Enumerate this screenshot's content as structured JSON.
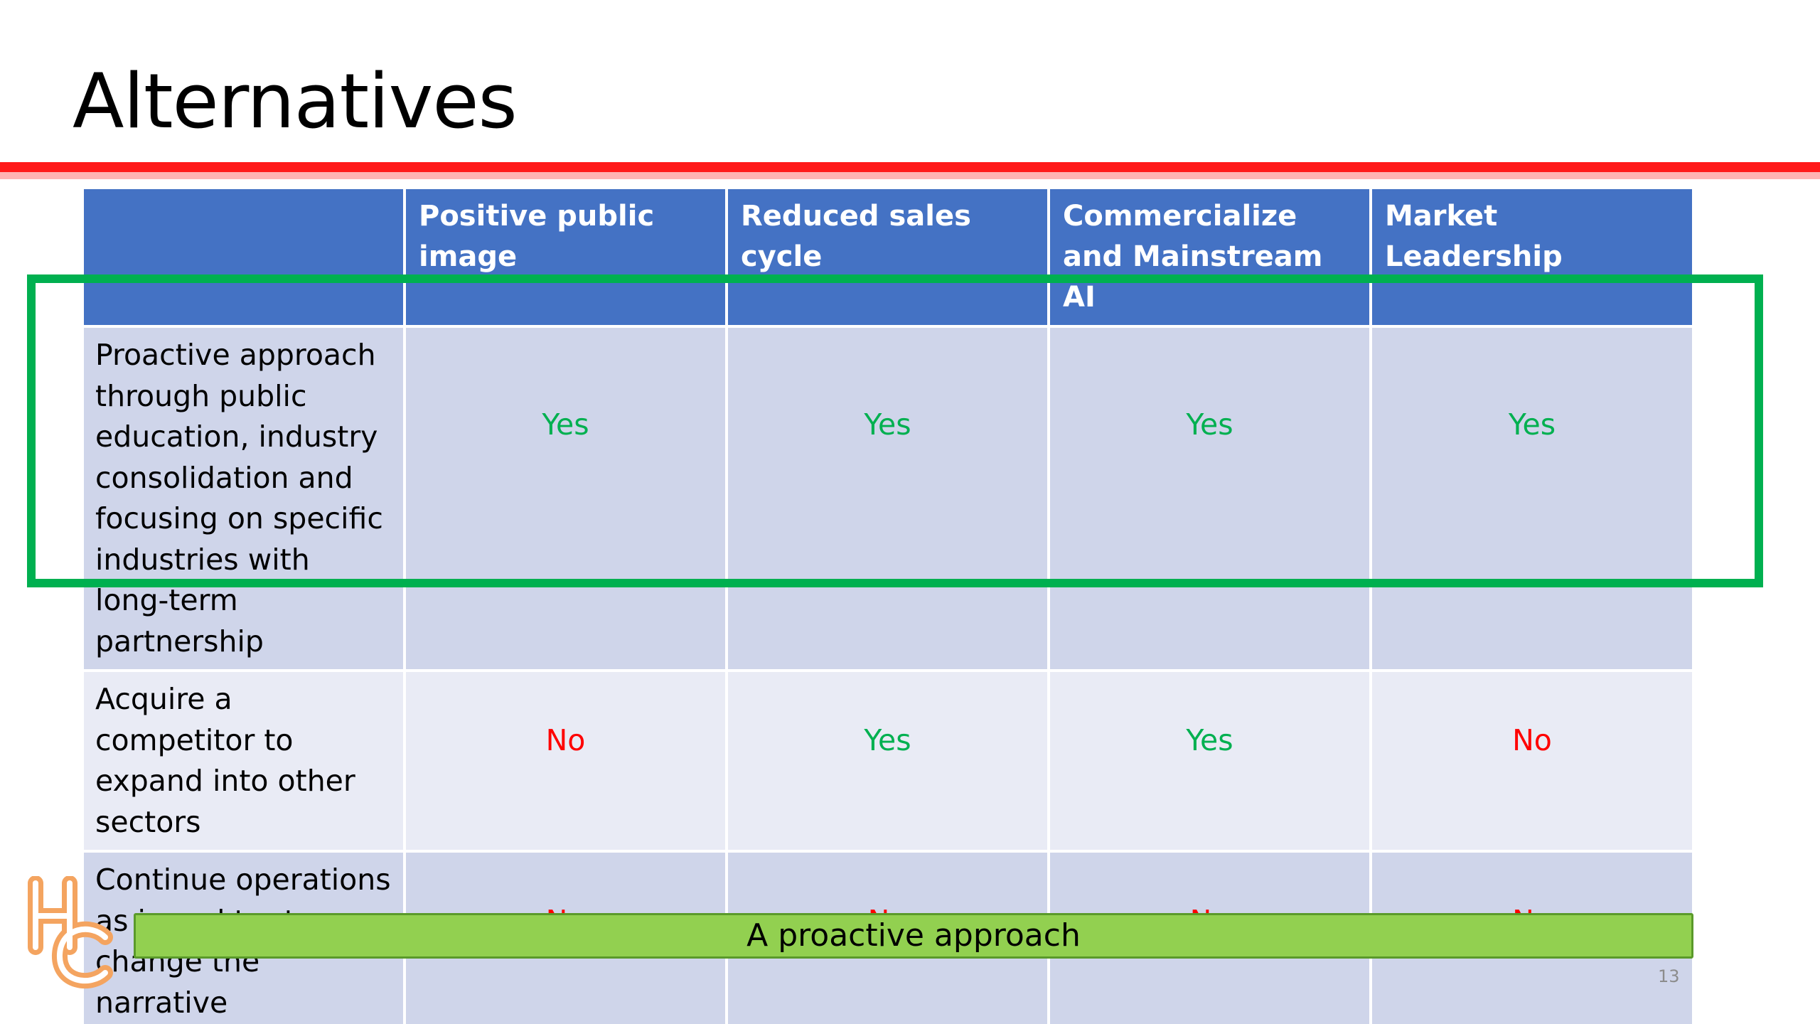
{
  "slide": {
    "title": "Alternatives",
    "page_number": "13",
    "banner_text": "A proactive approach",
    "logo_text": "HC"
  },
  "table": {
    "headers": [
      "",
      "Positive public image",
      "Reduced sales cycle",
      "Commercialize and Mainstream AI",
      "Market Leadership"
    ],
    "rows": [
      {
        "label": "Proactive approach through public education, industry consolidation and focusing on specific industries with long-term partnership",
        "values": [
          "Yes",
          "Yes",
          "Yes",
          "Yes"
        ],
        "highlighted": true
      },
      {
        "label": "Acquire a competitor to expand into other sectors",
        "values": [
          "No",
          "Yes",
          "Yes",
          "No"
        ],
        "highlighted": false
      },
      {
        "label": "Continue operations as is and try to change the narrative independently",
        "values": [
          "No",
          "No",
          "No",
          "No"
        ],
        "highlighted": false
      }
    ]
  },
  "colors": {
    "title_rule": "#ff1a1a",
    "header_fill": "#4472c4",
    "row_fill_dark": "#cfd5ea",
    "row_fill_light": "#e9ebf5",
    "yes_text": "#00b050",
    "no_text": "#ff0000",
    "highlight_border": "#00b050",
    "banner_fill": "#92d050",
    "logo": "#f4a460"
  }
}
